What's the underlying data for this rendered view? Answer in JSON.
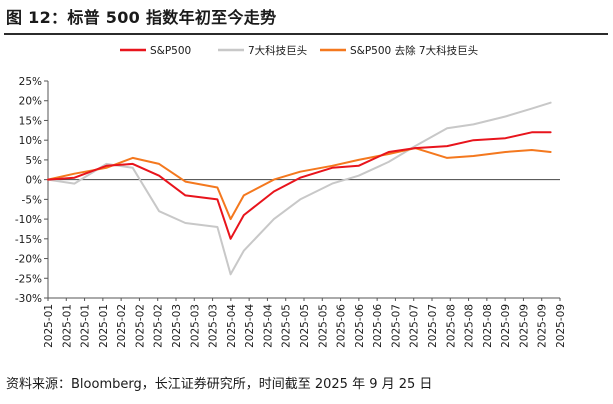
{
  "figure": {
    "title": "图 12：标普 500 指数年初至今走势",
    "source": "资料来源：Bloomberg，长江证券研究所，时间截至 2025 年 9 月 25 日"
  },
  "chart_data": {
    "type": "line",
    "legend_position": "top",
    "grid": false,
    "ylim": [
      -30,
      25
    ],
    "yticks": [
      -30,
      -25,
      -20,
      -15,
      -10,
      -5,
      0,
      5,
      10,
      15,
      20,
      25
    ],
    "ytick_labels": [
      "-30%",
      "-25%",
      "-20%",
      "-15%",
      "-10%",
      "-5%",
      "0%",
      "5%",
      "10%",
      "15%",
      "20%",
      "25%"
    ],
    "xtick_labels": [
      "2025-01",
      "2025-01",
      "2025-01",
      "2025-01",
      "2025-02",
      "2025-02",
      "2025-02",
      "2025-03",
      "2025-03",
      "2025-03",
      "2025-04",
      "2025-04",
      "2025-04",
      "2025-05",
      "2025-05",
      "2025-05",
      "2025-06",
      "2025-06",
      "2025-06",
      "2025-07",
      "2025-07",
      "2025-07",
      "2025-08",
      "2025-08",
      "2025-08",
      "2025-09",
      "2025-09",
      "2025-09",
      "2025-09"
    ],
    "x": [
      "2025-01-01",
      "2025-01-15",
      "2025-02-01",
      "2025-02-15",
      "2025-03-01",
      "2025-03-15",
      "2025-04-01",
      "2025-04-08",
      "2025-04-15",
      "2025-05-01",
      "2025-05-15",
      "2025-06-01",
      "2025-06-15",
      "2025-07-01",
      "2025-07-15",
      "2025-08-01",
      "2025-08-15",
      "2025-09-01",
      "2025-09-15",
      "2025-09-25"
    ],
    "series": [
      {
        "name": "S&P500",
        "color": "#e8141c",
        "values": [
          0,
          0.5,
          3.5,
          4,
          1,
          -4,
          -5,
          -15,
          -9,
          -3,
          0.5,
          3,
          3.5,
          7,
          8,
          8.5,
          10,
          10.5,
          12,
          12
        ]
      },
      {
        "name": "7大科技巨头",
        "color": "#c8c8c8",
        "values": [
          0,
          -1,
          4,
          3,
          -8,
          -11,
          -12,
          -24,
          -18,
          -10,
          -5,
          -1,
          1,
          4.5,
          8.5,
          13,
          14,
          16,
          18,
          19.5
        ]
      },
      {
        "name": "S&P500 去除 7大科技巨头",
        "color": "#f4781e",
        "values": [
          0,
          1.5,
          3,
          5.5,
          4,
          -0.5,
          -2,
          -10,
          -4,
          0,
          2,
          3.5,
          5,
          6.5,
          8,
          5.5,
          6,
          7,
          7.5,
          7
        ]
      }
    ]
  }
}
